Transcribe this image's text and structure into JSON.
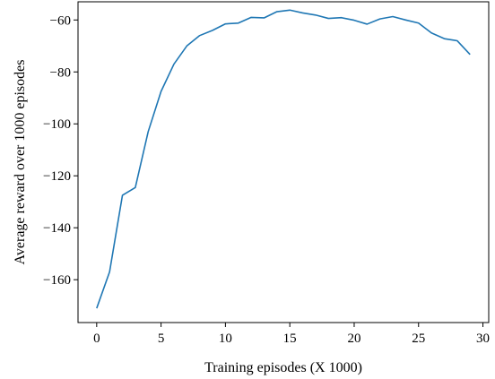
{
  "chart_data": {
    "type": "line",
    "title": "",
    "xlabel": "Training episodes (X 1000)",
    "ylabel": "Average reward over 1000 episodes",
    "xlim": [
      -1.45,
      30.45
    ],
    "ylim": [
      -176.5,
      -53.0
    ],
    "x_ticks": [
      0,
      5,
      10,
      15,
      20,
      25,
      30
    ],
    "x_tick_labels": [
      "0",
      "5",
      "10",
      "15",
      "20",
      "25",
      "30"
    ],
    "y_ticks": [
      -160,
      -140,
      -120,
      -100,
      -80,
      -60
    ],
    "y_tick_labels": [
      "−160",
      "−140",
      "−120",
      "−100",
      "−80",
      "−60"
    ],
    "grid": false,
    "series": [
      {
        "color": "#1f77b4",
        "x": [
          0,
          1,
          2,
          3,
          4,
          5,
          6,
          7,
          8,
          9,
          10,
          11,
          12,
          13,
          14,
          15,
          16,
          17,
          18,
          19,
          20,
          21,
          22,
          23,
          24,
          25,
          26,
          27,
          28,
          29
        ],
        "y": [
          -171,
          -157,
          -127.5,
          -124.5,
          -103,
          -87.5,
          -77,
          -70,
          -66,
          -64,
          -61.5,
          -61.2,
          -59,
          -59.2,
          -56.8,
          -56.2,
          -57.3,
          -58.1,
          -59.4,
          -59.1,
          -60.1,
          -61.6,
          -59.6,
          -58.7,
          -60,
          -61.2,
          -65,
          -67.2,
          -68,
          -73.3
        ]
      }
    ]
  }
}
